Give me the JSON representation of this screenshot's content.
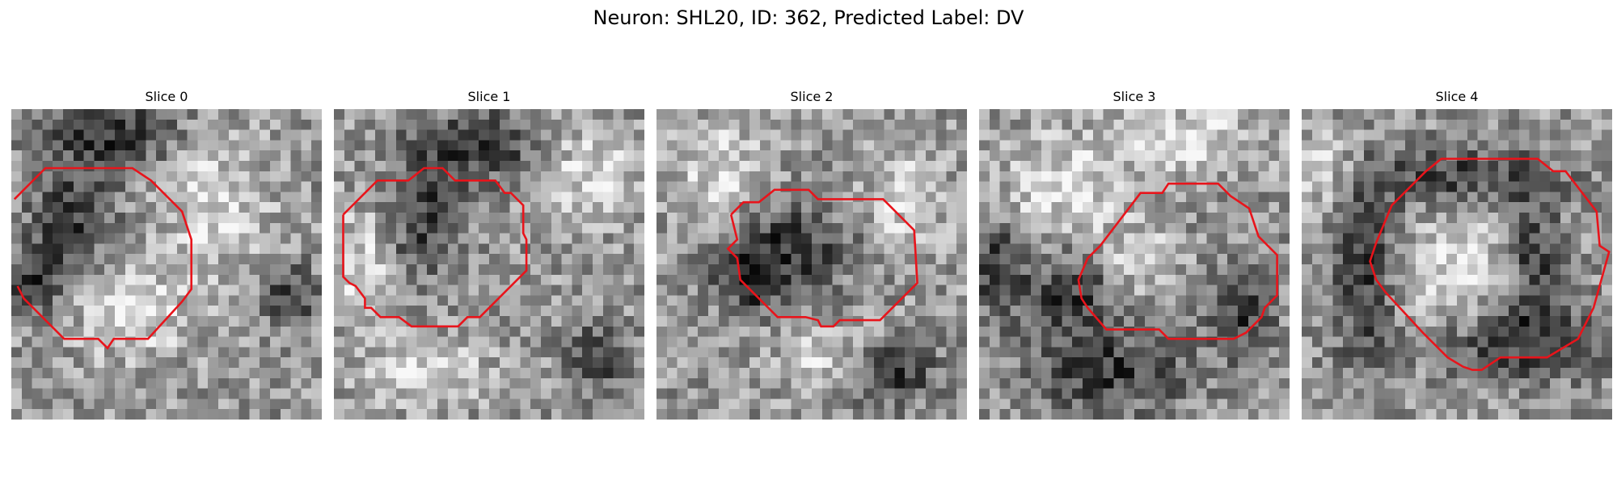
{
  "figure": {
    "title": "Neuron: SHL20, ID: 362, Predicted Label: DV",
    "contour_color": "#e8141b",
    "colormap": "grayscale",
    "panels": [
      {
        "title": "Slice 0",
        "dark_blobs": [
          [
            0.33,
            0.08,
            0.22,
            0.12
          ],
          [
            0.2,
            0.35,
            0.14,
            0.16
          ],
          [
            0.9,
            0.6,
            0.08,
            0.1
          ],
          [
            0.08,
            0.55,
            0.1,
            0.1
          ]
        ],
        "light_blobs": [
          [
            0.4,
            0.65,
            0.2,
            0.15
          ],
          [
            0.65,
            0.3,
            0.18,
            0.2
          ]
        ],
        "contour": [
          [
            0.01,
            0.29
          ],
          [
            0.11,
            0.19
          ],
          [
            0.39,
            0.19
          ],
          [
            0.45,
            0.23
          ],
          [
            0.55,
            0.33
          ],
          [
            0.58,
            0.42
          ],
          [
            0.58,
            0.58
          ],
          [
            0.55,
            0.62
          ],
          [
            0.44,
            0.74
          ],
          [
            0.33,
            0.74
          ],
          [
            0.31,
            0.77
          ],
          [
            0.28,
            0.74
          ],
          [
            0.17,
            0.74
          ],
          [
            0.04,
            0.61
          ],
          [
            0.02,
            0.57
          ]
        ]
      },
      {
        "title": "Slice 1",
        "dark_blobs": [
          [
            0.48,
            0.12,
            0.2,
            0.12
          ],
          [
            0.27,
            0.35,
            0.12,
            0.2
          ],
          [
            0.85,
            0.8,
            0.1,
            0.1
          ]
        ],
        "light_blobs": [
          [
            0.82,
            0.2,
            0.15,
            0.15
          ],
          [
            0.3,
            0.85,
            0.2,
            0.1
          ],
          [
            0.1,
            0.5,
            0.12,
            0.2
          ]
        ],
        "contour": [
          [
            0.03,
            0.34
          ],
          [
            0.14,
            0.23
          ],
          [
            0.24,
            0.23
          ],
          [
            0.29,
            0.19
          ],
          [
            0.35,
            0.19
          ],
          [
            0.39,
            0.23
          ],
          [
            0.52,
            0.23
          ],
          [
            0.55,
            0.27
          ],
          [
            0.57,
            0.27
          ],
          [
            0.61,
            0.31
          ],
          [
            0.61,
            0.4
          ],
          [
            0.62,
            0.42
          ],
          [
            0.62,
            0.52
          ],
          [
            0.47,
            0.67
          ],
          [
            0.43,
            0.67
          ],
          [
            0.4,
            0.7
          ],
          [
            0.25,
            0.7
          ],
          [
            0.21,
            0.67
          ],
          [
            0.15,
            0.67
          ],
          [
            0.12,
            0.64
          ],
          [
            0.1,
            0.64
          ],
          [
            0.1,
            0.61
          ],
          [
            0.07,
            0.57
          ],
          [
            0.05,
            0.56
          ],
          [
            0.03,
            0.54
          ]
        ]
      },
      {
        "title": "Slice 2",
        "dark_blobs": [
          [
            0.42,
            0.45,
            0.2,
            0.15
          ],
          [
            0.3,
            0.55,
            0.1,
            0.1
          ],
          [
            0.75,
            0.85,
            0.15,
            0.1
          ]
        ],
        "light_blobs": [
          [
            0.2,
            0.2,
            0.15,
            0.15
          ],
          [
            0.8,
            0.3,
            0.12,
            0.15
          ],
          [
            0.55,
            0.8,
            0.15,
            0.1
          ]
        ],
        "contour": [
          [
            0.24,
            0.34
          ],
          [
            0.28,
            0.3
          ],
          [
            0.33,
            0.3
          ],
          [
            0.38,
            0.26
          ],
          [
            0.49,
            0.26
          ],
          [
            0.52,
            0.29
          ],
          [
            0.73,
            0.29
          ],
          [
            0.83,
            0.39
          ],
          [
            0.84,
            0.56
          ],
          [
            0.72,
            0.68
          ],
          [
            0.59,
            0.68
          ],
          [
            0.57,
            0.7
          ],
          [
            0.53,
            0.7
          ],
          [
            0.52,
            0.68
          ],
          [
            0.48,
            0.67
          ],
          [
            0.42,
            0.67
          ],
          [
            0.39,
            0.67
          ],
          [
            0.27,
            0.55
          ],
          [
            0.26,
            0.48
          ],
          [
            0.23,
            0.45
          ],
          [
            0.26,
            0.42
          ]
        ]
      },
      {
        "title": "Slice 3",
        "dark_blobs": [
          [
            0.3,
            0.6,
            0.18,
            0.15
          ],
          [
            0.42,
            0.85,
            0.25,
            0.12
          ],
          [
            0.85,
            0.65,
            0.1,
            0.15
          ],
          [
            0.05,
            0.5,
            0.08,
            0.15
          ]
        ],
        "light_blobs": [
          [
            0.28,
            0.25,
            0.22,
            0.18
          ],
          [
            0.7,
            0.1,
            0.2,
            0.1
          ],
          [
            0.5,
            0.5,
            0.12,
            0.12
          ]
        ],
        "contour": [
          [
            0.35,
            0.48
          ],
          [
            0.39,
            0.44
          ],
          [
            0.52,
            0.27
          ],
          [
            0.59,
            0.27
          ],
          [
            0.61,
            0.24
          ],
          [
            0.77,
            0.24
          ],
          [
            0.81,
            0.28
          ],
          [
            0.87,
            0.32
          ],
          [
            0.9,
            0.41
          ],
          [
            0.96,
            0.47
          ],
          [
            0.96,
            0.6
          ],
          [
            0.92,
            0.64
          ],
          [
            0.91,
            0.67
          ],
          [
            0.86,
            0.72
          ],
          [
            0.82,
            0.74
          ],
          [
            0.61,
            0.74
          ],
          [
            0.58,
            0.71
          ],
          [
            0.41,
            0.71
          ],
          [
            0.35,
            0.64
          ],
          [
            0.33,
            0.61
          ],
          [
            0.32,
            0.55
          ]
        ]
      },
      {
        "title": "Slice 4",
        "dark_blobs": [
          [
            0.2,
            0.5,
            0.1,
            0.35
          ],
          [
            0.5,
            0.22,
            0.3,
            0.1
          ],
          [
            0.7,
            0.75,
            0.25,
            0.12
          ],
          [
            0.75,
            0.5,
            0.08,
            0.2
          ]
        ],
        "light_blobs": [
          [
            0.5,
            0.5,
            0.18,
            0.2
          ],
          [
            0.1,
            0.2,
            0.12,
            0.15
          ]
        ],
        "contour": [
          [
            0.24,
            0.43
          ],
          [
            0.29,
            0.31
          ],
          [
            0.4,
            0.2
          ],
          [
            0.45,
            0.16
          ],
          [
            0.76,
            0.16
          ],
          [
            0.81,
            0.2
          ],
          [
            0.85,
            0.2
          ],
          [
            0.95,
            0.33
          ],
          [
            0.96,
            0.44
          ],
          [
            0.99,
            0.46
          ],
          [
            0.94,
            0.64
          ],
          [
            0.89,
            0.74
          ],
          [
            0.79,
            0.8
          ],
          [
            0.64,
            0.8
          ],
          [
            0.58,
            0.84
          ],
          [
            0.55,
            0.84
          ],
          [
            0.52,
            0.83
          ],
          [
            0.47,
            0.8
          ],
          [
            0.39,
            0.72
          ],
          [
            0.27,
            0.59
          ],
          [
            0.24,
            0.55
          ],
          [
            0.22,
            0.49
          ]
        ]
      }
    ]
  }
}
